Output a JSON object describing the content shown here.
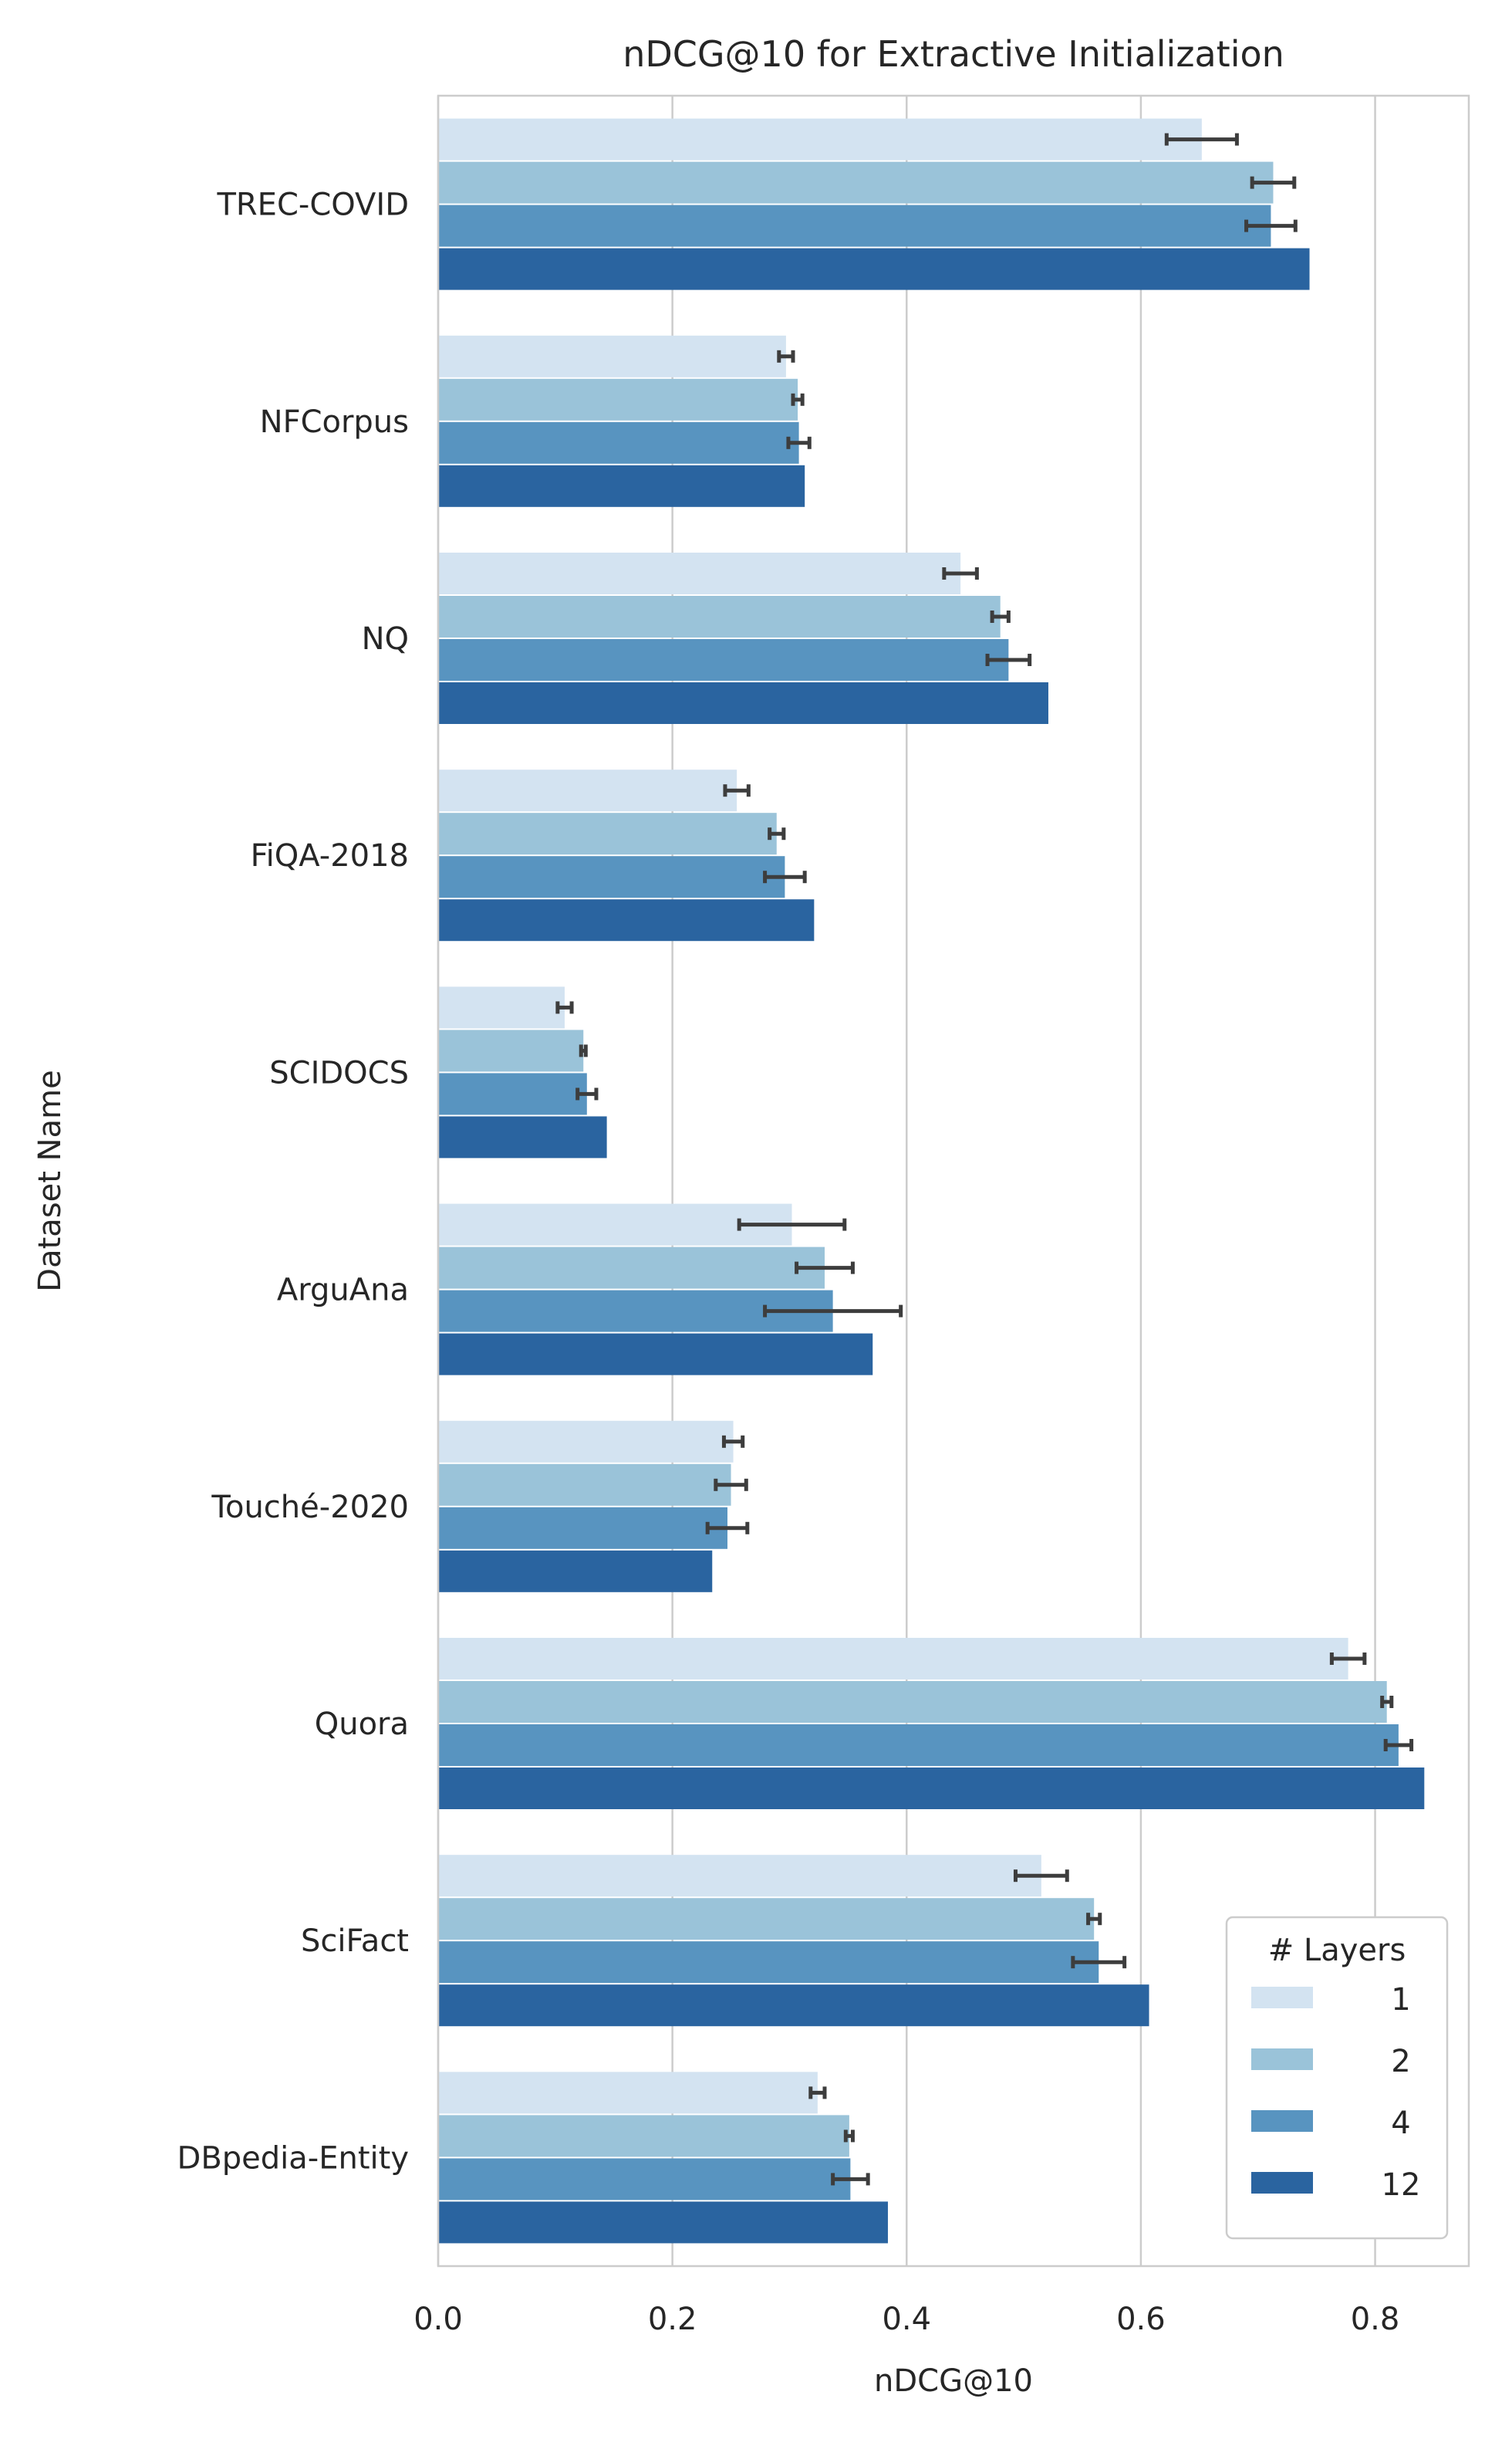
{
  "chart_data": {
    "type": "bar",
    "orientation": "horizontal",
    "title": "nDCG@10 for Extractive Initialization",
    "xlabel": "nDCG@10",
    "ylabel": "Dataset Name",
    "xlim": [
      0.0,
      0.88
    ],
    "xticks": [
      "0.0",
      "0.2",
      "0.4",
      "0.6",
      "0.8"
    ],
    "grid": "vertical",
    "legend": {
      "title": "# Layers",
      "placement": "lower-right"
    },
    "categories": [
      "TREC-COVID",
      "NFCorpus",
      "NQ",
      "FiQA-2018",
      "SCIDOCS",
      "ArguAna",
      "Touché-2020",
      "Quora",
      "SciFact",
      "DBpedia-Entity"
    ],
    "series": [
      {
        "name": "1",
        "color": "#d3e3f1",
        "values": [
          0.652,
          0.297,
          0.446,
          0.255,
          0.108,
          0.302,
          0.252,
          0.777,
          0.515,
          0.324
        ],
        "error": [
          0.03,
          0.006,
          0.014,
          0.01,
          0.006,
          0.045,
          0.008,
          0.014,
          0.022,
          0.006
        ]
      },
      {
        "name": "2",
        "color": "#9ac3d9",
        "values": [
          0.713,
          0.307,
          0.48,
          0.289,
          0.124,
          0.33,
          0.25,
          0.81,
          0.56,
          0.351
        ],
        "error": [
          0.018,
          0.004,
          0.007,
          0.006,
          0.002,
          0.024,
          0.013,
          0.004,
          0.005,
          0.003
        ]
      },
      {
        "name": "4",
        "color": "#5894c0",
        "values": [
          0.711,
          0.308,
          0.487,
          0.296,
          0.127,
          0.337,
          0.247,
          0.82,
          0.564,
          0.352
        ],
        "error": [
          0.021,
          0.009,
          0.018,
          0.017,
          0.008,
          0.058,
          0.017,
          0.011,
          0.022,
          0.015
        ]
      },
      {
        "name": "12",
        "color": "#2a64a0",
        "values": [
          0.744,
          0.313,
          0.521,
          0.321,
          0.144,
          0.371,
          0.234,
          0.842,
          0.607,
          0.384
        ],
        "error": null
      }
    ]
  }
}
